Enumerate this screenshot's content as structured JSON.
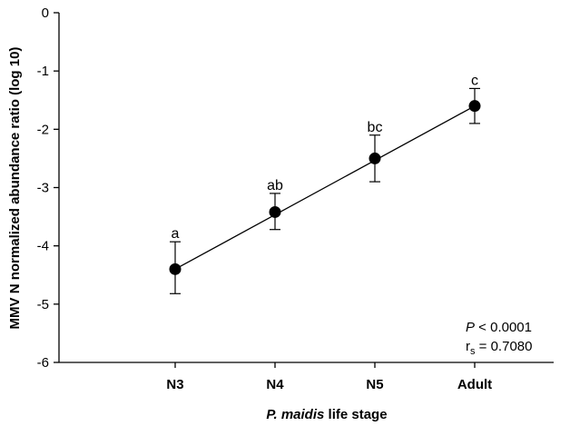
{
  "chart_data": {
    "type": "line",
    "categories": [
      "N3",
      "N4",
      "N5",
      "Adult"
    ],
    "series": [
      {
        "values": [
          -4.4,
          -3.42,
          -2.5,
          -1.6
        ],
        "error_upper": [
          -3.93,
          -3.1,
          -2.1,
          -1.3
        ],
        "error_lower": [
          -4.82,
          -3.72,
          -2.9,
          -1.9
        ],
        "significance_labels": [
          "a",
          "ab",
          "bc",
          "c"
        ]
      }
    ],
    "regression_line": {
      "from": -4.4,
      "to": -1.6
    },
    "xlabel_italic": "P. maidis",
    "xlabel_rest": " life stage",
    "ylabel": "MMV N normalized abundance ratio (log 10)",
    "ylim": [
      -6,
      0
    ],
    "yticks": [
      "0",
      "-1",
      "-2",
      "-3",
      "-4",
      "-5",
      "-6"
    ],
    "ytick_values": [
      0,
      -1,
      -2,
      -3,
      -4,
      -5,
      -6
    ],
    "grid": false,
    "stats": {
      "p_symbol": "P",
      "p_value": " < 0.0001",
      "r_symbol": "r",
      "r_subscript": "s",
      "r_value": " = 0.7080"
    }
  }
}
